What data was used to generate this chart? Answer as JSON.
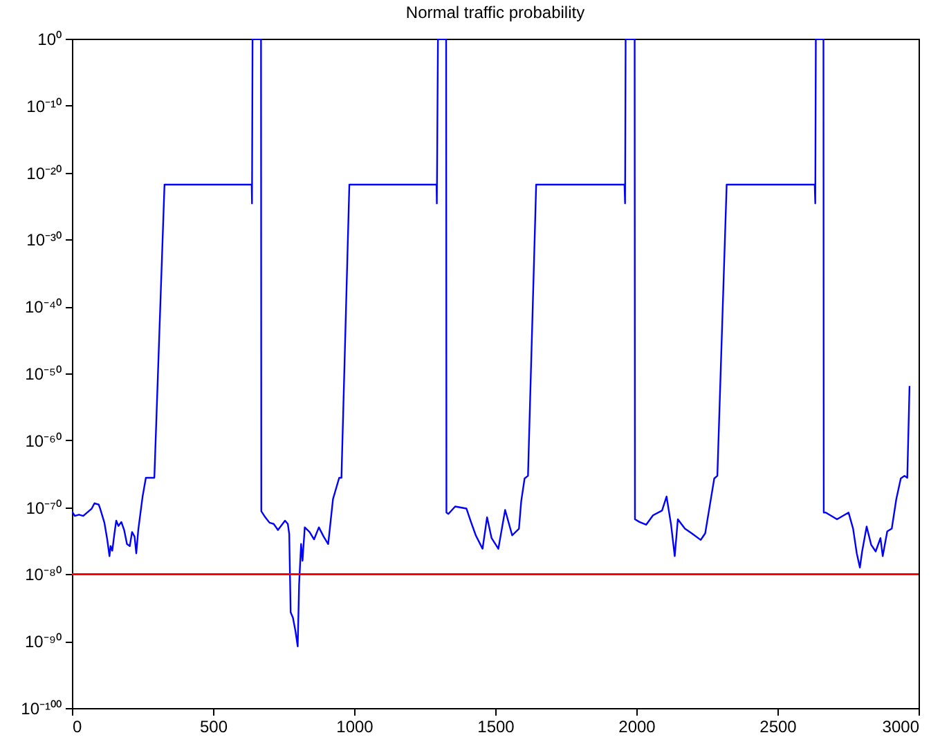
{
  "chart_data": {
    "type": "line",
    "title": "Normal traffic probability",
    "x": [
      0,
      10,
      25,
      40,
      70,
      80,
      95,
      100,
      115,
      125,
      133,
      137,
      143,
      150,
      157,
      165,
      175,
      185,
      195,
      205,
      213,
      222,
      228,
      235,
      250,
      262,
      292,
      328,
      637,
      638,
      640,
      670,
      671,
      685,
      700,
      715,
      730,
      755,
      765,
      770,
      775,
      783,
      792,
      800,
      805,
      812,
      817,
      825,
      842,
      858,
      875,
      892,
      908,
      925,
      947,
      955,
      983,
      1292,
      1293,
      1297,
      1326,
      1327,
      1334,
      1358,
      1398,
      1414,
      1431,
      1455,
      1471,
      1487,
      1511,
      1535,
      1560,
      1584,
      1592,
      1604,
      1616,
      1645,
      1958,
      1960,
      1962,
      1994,
      1995,
      2011,
      2035,
      2059,
      2091,
      2107,
      2123,
      2136,
      2147,
      2172,
      2196,
      2228,
      2244,
      2260,
      2276,
      2287,
      2320,
      2632,
      2634,
      2636,
      2663,
      2664,
      2671,
      2711,
      2752,
      2768,
      2781,
      2792,
      2800,
      2816,
      2832,
      2848,
      2865,
      2873,
      2889,
      2905,
      2921,
      2937,
      2950,
      2960,
      2968
    ],
    "series": [
      {
        "color": "#0000ff",
        "values": [
          2.5e-71,
          5e-72,
          7.9e-72,
          5e-72,
          6.3e-71,
          4e-70,
          2.5e-70,
          6.3e-71,
          5e-73,
          1.6e-75,
          5e-78,
          1.6e-76,
          3.2e-77,
          7.9e-75,
          1e-72,
          1.6e-73,
          6.3e-73,
          4e-74,
          3.2e-76,
          1.6e-76,
          2e-74,
          4e-75,
          1.3e-77,
          4e-74,
          3.2e-69,
          2.5e-66,
          2.5e-66,
          1.6e-22,
          1.6e-22,
          2.5e-25,
          1,
          1,
          2.5e-71,
          3.2e-72,
          5e-73,
          3.2e-73,
          4e-74,
          1e-72,
          3.2e-73,
          1e-74,
          2e-86,
          3.2e-87,
          3.2e-89,
          1.6e-91,
          3.2e-82,
          3.2e-76,
          1e-78,
          1e-73,
          2e-74,
          1.6e-75,
          1e-73,
          4e-75,
          3.2e-76,
          1.6e-69,
          2.5e-66,
          2.5e-66,
          1.6e-22,
          1.6e-22,
          2.5e-25,
          1,
          1,
          1.6e-71,
          1e-71,
          1.3e-70,
          6.3e-71,
          6.3e-73,
          6.3e-75,
          6.3e-77,
          3.2e-72,
          2.5e-75,
          6.3e-77,
          4e-71,
          6.3e-75,
          6.3e-74,
          7.9e-70,
          2e-66,
          5e-66,
          1.6e-22,
          1.6e-22,
          2.5e-25,
          1,
          1,
          1.6e-72,
          6.3e-73,
          2.5e-73,
          6.3e-72,
          3.2e-71,
          4e-69,
          2.5e-73,
          5e-78,
          1.6e-72,
          6.3e-74,
          1.3e-74,
          1.3e-75,
          1.3e-74,
          1.6e-70,
          2e-66,
          5e-66,
          1.6e-22,
          1.6e-22,
          2.5e-25,
          1,
          1,
          1.6e-71,
          1.6e-71,
          1.6e-72,
          1.6e-71,
          6.3e-74,
          1.3e-77,
          1e-79,
          2.5e-77,
          1.3e-73,
          2.5e-76,
          2.5e-77,
          2.5e-75,
          5e-78,
          2.5e-74,
          6.3e-74,
          1.6e-69,
          2e-66,
          5e-66,
          2.5e-66,
          1.3e-52
        ]
      }
    ],
    "log": "y",
    "xlim": [
      0,
      3000
    ],
    "xticks": [
      0,
      500,
      1000,
      1500,
      2000,
      2500,
      3000
    ],
    "ylim": [
      1e-100,
      1
    ],
    "yticks": [
      {
        "value": 1e-100,
        "label": "10⁻¹⁰⁰"
      },
      {
        "value": 1e-90,
        "label": "10⁻⁹⁰"
      },
      {
        "value": 1e-80,
        "label": "10⁻⁸⁰"
      },
      {
        "value": 1e-70,
        "label": "10⁻⁷⁰"
      },
      {
        "value": 1e-60,
        "label": "10⁻⁶⁰"
      },
      {
        "value": 1e-50,
        "label": "10⁻⁵⁰"
      },
      {
        "value": 1e-40,
        "label": "10⁻⁴⁰"
      },
      {
        "value": 1e-30,
        "label": "10⁻³⁰"
      },
      {
        "value": 1e-20,
        "label": "10⁻²⁰"
      },
      {
        "value": 1e-10,
        "label": "10⁻¹⁰"
      },
      {
        "value": 1,
        "label": "10⁰"
      }
    ],
    "ref_lines": [
      {
        "axis": "y",
        "value": 1e-80,
        "color": "#ff0000"
      }
    ],
    "grid": false
  }
}
